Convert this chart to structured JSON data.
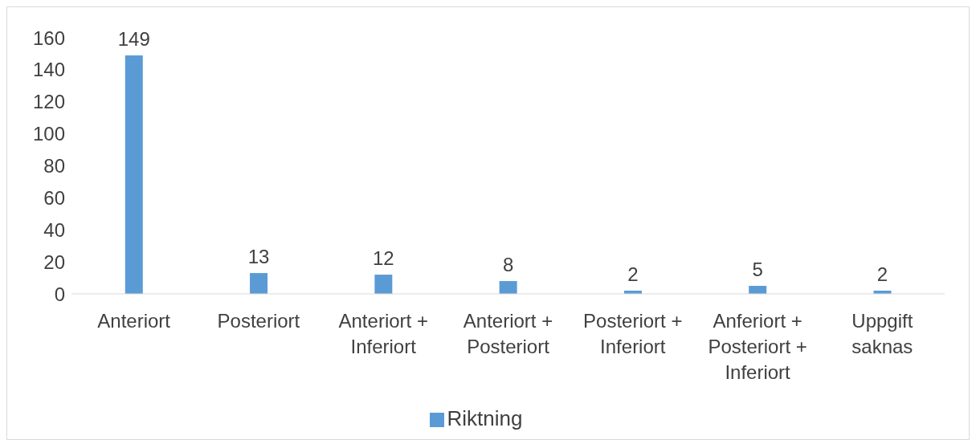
{
  "chart_data": {
    "type": "bar",
    "categories": [
      "Anteriort",
      "Posteriort",
      "Anteriort + Inferiort",
      "Anteriort + Posteriort",
      "Posteriort + Inferiort",
      "Anferiort + Posteriort + Inferiort",
      "Uppgift saknas"
    ],
    "series": [
      {
        "name": "Riktning",
        "color": "#5b9bd5",
        "values": [
          149,
          13,
          12,
          8,
          2,
          5,
          2
        ]
      }
    ],
    "ylim": [
      0,
      160
    ],
    "yticks": [
      0,
      20,
      40,
      60,
      80,
      100,
      120,
      140,
      160
    ],
    "grid": false,
    "data_labels": true,
    "legend": "bottom"
  }
}
